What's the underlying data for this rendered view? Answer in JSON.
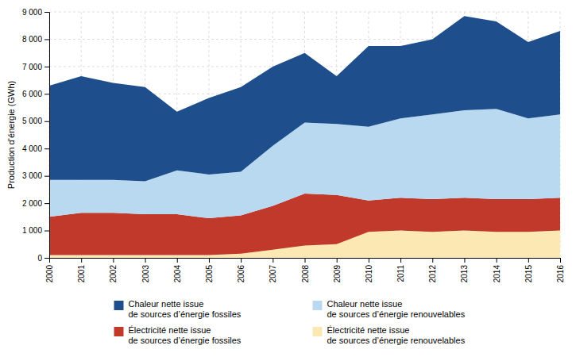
{
  "chart_data": {
    "type": "area",
    "stacked": true,
    "x": [
      2000,
      2001,
      2002,
      2003,
      2004,
      2005,
      2006,
      2007,
      2008,
      2009,
      2010,
      2011,
      2012,
      2013,
      2014,
      2015,
      2016
    ],
    "series": [
      {
        "name": "Électricité nette issue\nde sources d’énergie renouvelables",
        "color": "#fce8b2",
        "values": [
          100,
          100,
          100,
          100,
          100,
          100,
          150,
          300,
          450,
          500,
          950,
          1000,
          950,
          1000,
          950,
          950,
          1000
        ]
      },
      {
        "name": "Électricité nette issue\nde sources d’énergie fossiles",
        "color": "#c0392b",
        "values": [
          1400,
          1550,
          1550,
          1500,
          1500,
          1350,
          1400,
          1600,
          1900,
          1800,
          1150,
          1200,
          1200,
          1200,
          1200,
          1200,
          1200
        ]
      },
      {
        "name": "Chaleur nette issue\nde sources d’énergie renouvelables",
        "color": "#b8d9f0",
        "values": [
          1350,
          1200,
          1200,
          1200,
          1600,
          1600,
          1600,
          2200,
          2600,
          2600,
          2700,
          2900,
          3100,
          3200,
          3300,
          2950,
          3050
        ]
      },
      {
        "name": "Chaleur nette issue\nde sources d’énergie fossiles",
        "color": "#1f4e8c",
        "values": [
          3450,
          3800,
          3550,
          3450,
          2150,
          2800,
          3100,
          2900,
          2550,
          1750,
          2950,
          2650,
          2750,
          3450,
          3200,
          2800,
          3050
        ]
      }
    ],
    "y_label": "Production d’énergie (GWh)",
    "xlim": [
      2000,
      2016
    ],
    "xticks": [
      2000,
      2001,
      2002,
      2003,
      2004,
      2005,
      2006,
      2007,
      2008,
      2009,
      2010,
      2011,
      2012,
      2013,
      2014,
      2015,
      2016
    ],
    "ylim": [
      0,
      9000
    ],
    "yticks": [
      0,
      {
        "value": 1000,
        "label": "1 000"
      },
      {
        "value": 2000,
        "label": "2 000"
      },
      {
        "value": 3000,
        "label": "3 000"
      },
      {
        "value": 4000,
        "label": "4 000"
      },
      {
        "value": 5000,
        "label": "5 000"
      },
      {
        "value": 6000,
        "label": "6 000"
      },
      {
        "value": 7000,
        "label": "7 000"
      },
      {
        "value": 8000,
        "label": "8 000"
      },
      {
        "value": 9000,
        "label": "9 000"
      }
    ],
    "grid": true,
    "legend": "bottom"
  }
}
